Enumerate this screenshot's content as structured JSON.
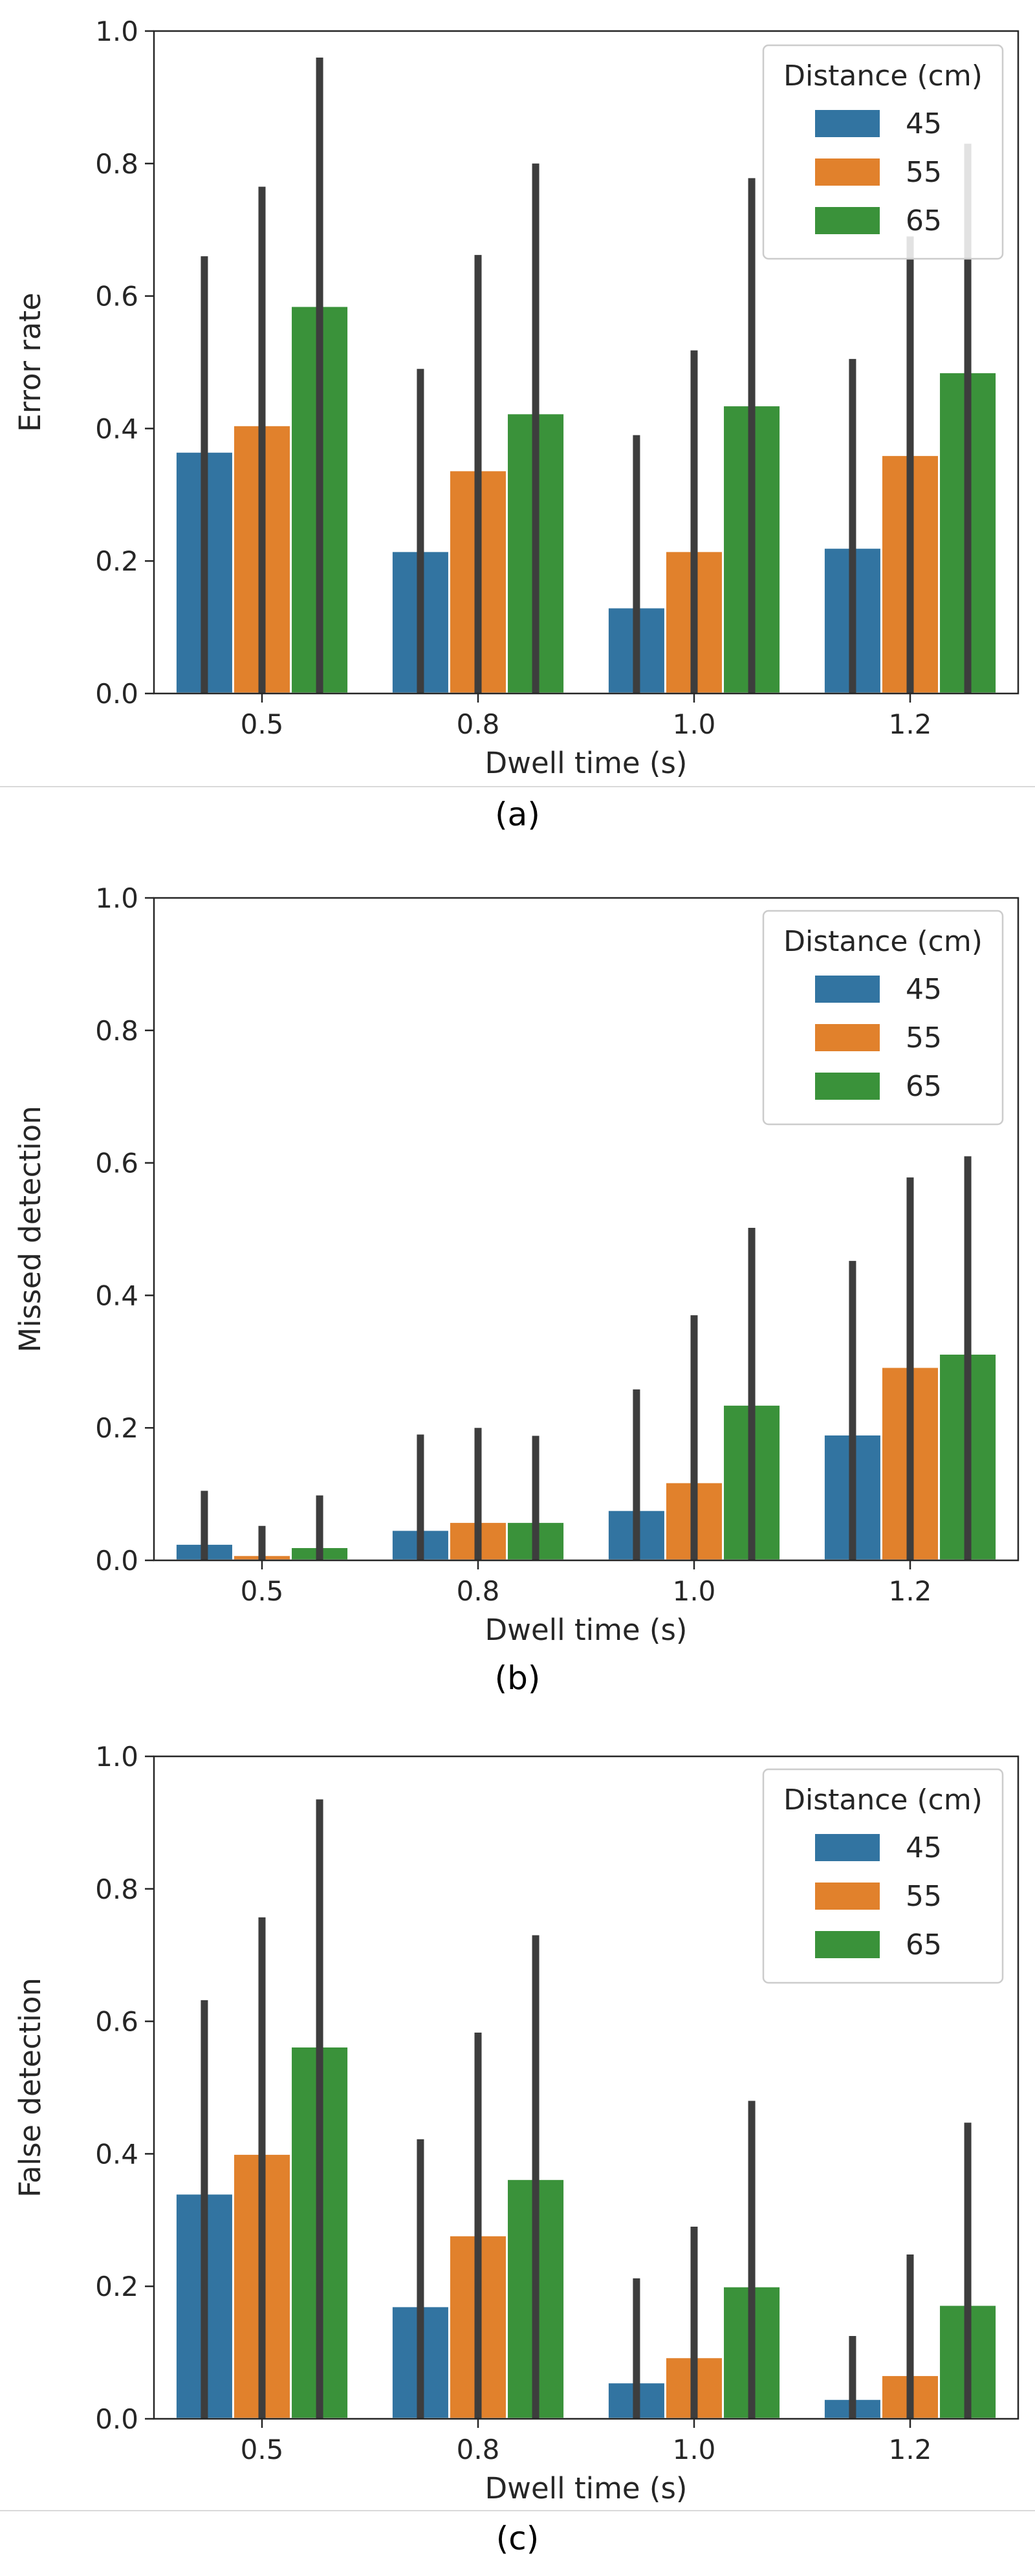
{
  "captions": [
    "(a)",
    "(b)",
    "(c)"
  ],
  "chart_data": [
    {
      "type": "bar",
      "xlabel": "Dwell time (s)",
      "ylabel": "Error rate",
      "categories": [
        "0.5",
        "0.8",
        "1.0",
        "1.2"
      ],
      "ylim": [
        0,
        1.0
      ],
      "yticks": [
        "0.0",
        "0.2",
        "0.4",
        "0.6",
        "0.8",
        "1.0"
      ],
      "grid": false,
      "legend": {
        "title": "Distance (cm)",
        "placement": "top-right"
      },
      "series": [
        {
          "name": "45",
          "color": "#3274a1",
          "values": [
            0.365,
            0.215,
            0.13,
            0.22
          ],
          "err_high": [
            0.66,
            0.49,
            0.39,
            0.505
          ]
        },
        {
          "name": "55",
          "color": "#e1812c",
          "values": [
            0.405,
            0.337,
            0.215,
            0.36
          ],
          "err_high": [
            0.765,
            0.662,
            0.518,
            0.69
          ]
        },
        {
          "name": "65",
          "color": "#3a923a",
          "values": [
            0.585,
            0.423,
            0.435,
            0.485
          ],
          "err_high": [
            0.96,
            0.8,
            0.778,
            0.83
          ]
        }
      ]
    },
    {
      "type": "bar",
      "xlabel": "Dwell time (s)",
      "ylabel": "Missed detection",
      "categories": [
        "0.5",
        "0.8",
        "1.0",
        "1.2"
      ],
      "ylim": [
        0,
        1.0
      ],
      "yticks": [
        "0.0",
        "0.2",
        "0.4",
        "0.6",
        "0.8",
        "1.0"
      ],
      "grid": false,
      "legend": {
        "title": "Distance (cm)",
        "placement": "top-right"
      },
      "series": [
        {
          "name": "45",
          "color": "#3274a1",
          "values": [
            0.025,
            0.046,
            0.076,
            0.19
          ],
          "err_high": [
            0.105,
            0.19,
            0.258,
            0.452
          ]
        },
        {
          "name": "55",
          "color": "#e1812c",
          "values": [
            0.008,
            0.058,
            0.118,
            0.292
          ],
          "err_high": [
            0.052,
            0.2,
            0.37,
            0.578
          ]
        },
        {
          "name": "65",
          "color": "#3a923a",
          "values": [
            0.02,
            0.058,
            0.235,
            0.312
          ],
          "err_high": [
            0.098,
            0.188,
            0.502,
            0.61
          ]
        }
      ]
    },
    {
      "type": "bar",
      "xlabel": "Dwell time (s)",
      "ylabel": "False detection",
      "categories": [
        "0.5",
        "0.8",
        "1.0",
        "1.2"
      ],
      "ylim": [
        0,
        1.0
      ],
      "yticks": [
        "0.0",
        "0.2",
        "0.4",
        "0.6",
        "0.8",
        "1.0"
      ],
      "grid": false,
      "legend": {
        "title": "Distance (cm)",
        "placement": "top-right"
      },
      "series": [
        {
          "name": "45",
          "color": "#3274a1",
          "values": [
            0.34,
            0.17,
            0.055,
            0.03
          ],
          "err_high": [
            0.632,
            0.422,
            0.212,
            0.125
          ]
        },
        {
          "name": "55",
          "color": "#e1812c",
          "values": [
            0.4,
            0.277,
            0.093,
            0.066
          ],
          "err_high": [
            0.757,
            0.583,
            0.29,
            0.248
          ]
        },
        {
          "name": "65",
          "color": "#3a923a",
          "values": [
            0.562,
            0.362,
            0.2,
            0.172
          ],
          "err_high": [
            0.935,
            0.73,
            0.48,
            0.447
          ]
        }
      ]
    }
  ]
}
